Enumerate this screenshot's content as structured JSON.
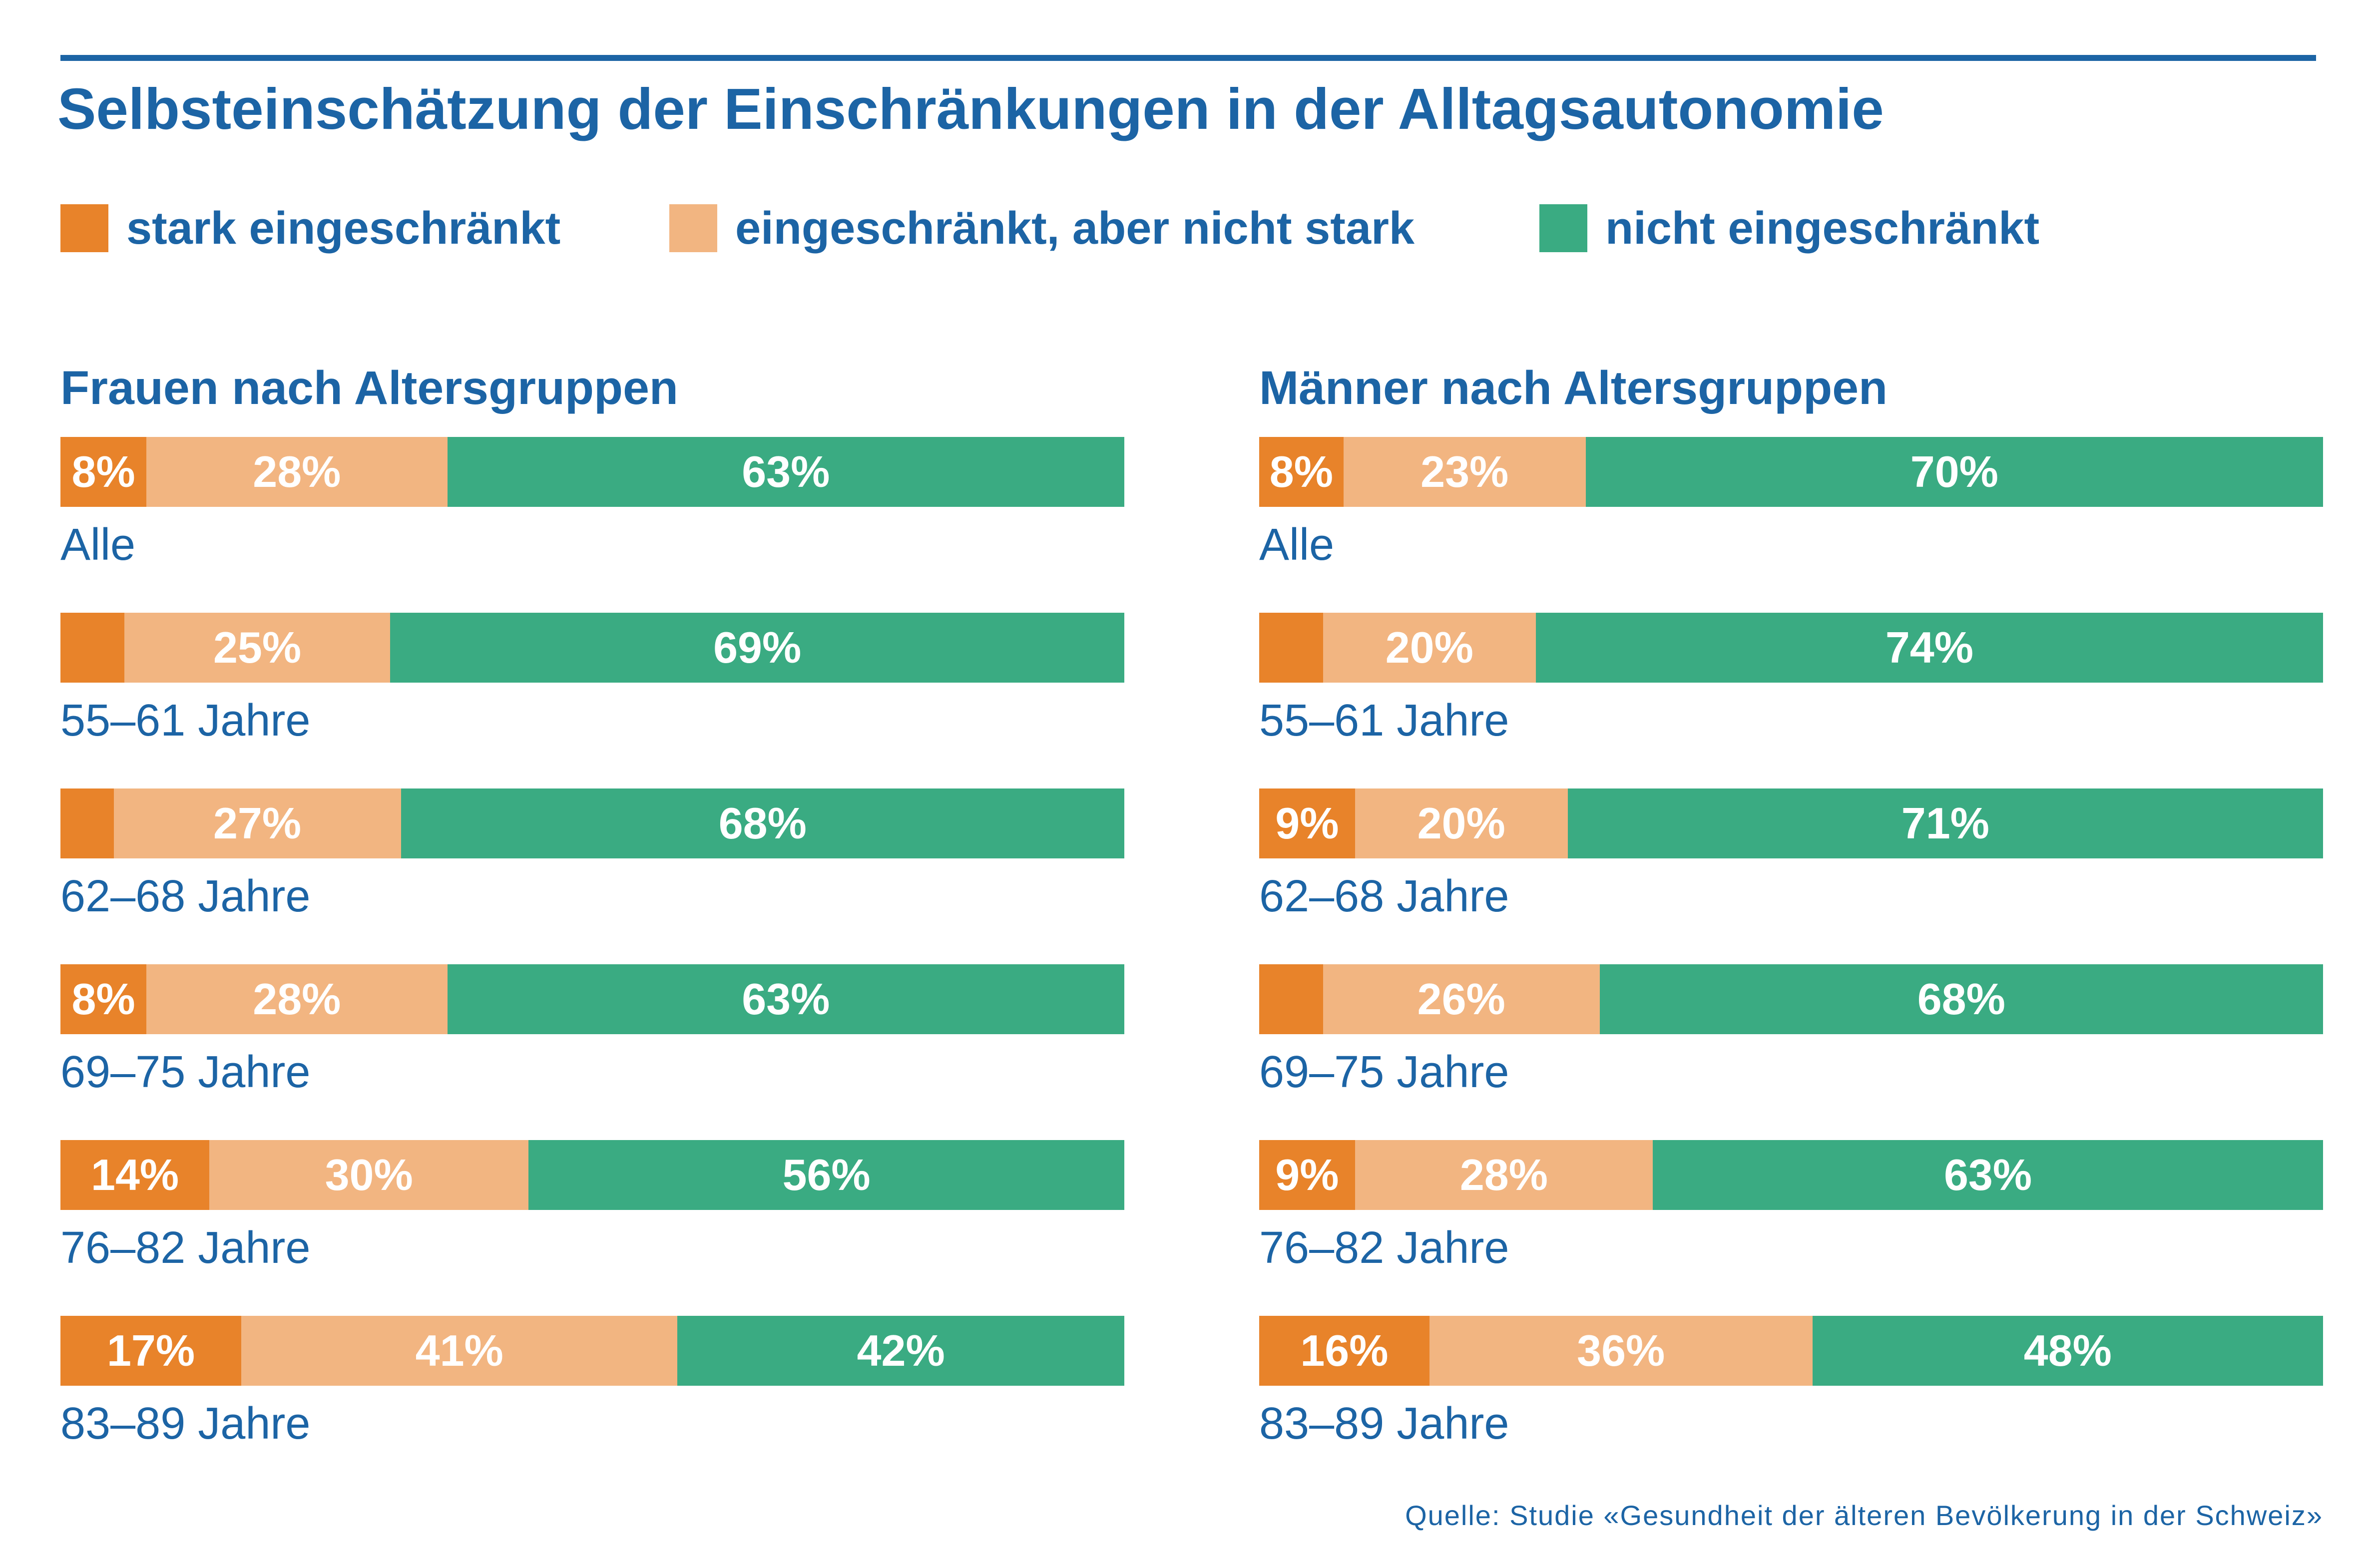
{
  "title": "Selbsteinschätzung der Einschränkungen in der Alltagsautonomie",
  "source": "Quelle: Studie «Gesundheit der älteren Bevölkerung in der Schweiz»",
  "colors": {
    "text": "#1c64a5",
    "rule": "#1c64a5",
    "stark": "#e8832a",
    "eingeschraenkt": "#f2b581",
    "nicht": "#3aab82"
  },
  "legend": [
    {
      "label": "stark eingeschränkt",
      "color": "#e8832a"
    },
    {
      "label": "eingeschränkt, aber nicht stark",
      "color": "#f2b581"
    },
    {
      "label": "nicht eingeschränkt",
      "color": "#3aab82"
    }
  ],
  "chart_data": [
    {
      "type": "bar",
      "orientation": "horizontal",
      "stacked": true,
      "title": "Frauen nach Altersgruppen",
      "categories": [
        "Alle",
        "55–61 Jahre",
        "62–68 Jahre",
        "69–75 Jahre",
        "76–82 Jahre",
        "83–89 Jahre"
      ],
      "series": [
        {
          "name": "stark eingeschränkt",
          "values": [
            8,
            6,
            5,
            8,
            14,
            17
          ],
          "labels": [
            "8%",
            "",
            "",
            "8%",
            "14%",
            "17%"
          ]
        },
        {
          "name": "eingeschränkt, aber nicht stark",
          "values": [
            28,
            25,
            27,
            28,
            30,
            41
          ],
          "labels": [
            "28%",
            "25%",
            "27%",
            "28%",
            "30%",
            "41%"
          ]
        },
        {
          "name": "nicht eingeschränkt",
          "values": [
            63,
            69,
            68,
            63,
            56,
            42
          ],
          "labels": [
            "63%",
            "69%",
            "68%",
            "63%",
            "56%",
            "42%"
          ]
        }
      ],
      "xlim": [
        0,
        100
      ]
    },
    {
      "type": "bar",
      "orientation": "horizontal",
      "stacked": true,
      "title": "Männer nach Altersgruppen",
      "categories": [
        "Alle",
        "55–61 Jahre",
        "62–68 Jahre",
        "69–75 Jahre",
        "76–82 Jahre",
        "83–89 Jahre"
      ],
      "series": [
        {
          "name": "stark eingeschränkt",
          "values": [
            8,
            6,
            9,
            6,
            9,
            16
          ],
          "labels": [
            "8%",
            "",
            "9%",
            "",
            "9%",
            "16%"
          ]
        },
        {
          "name": "eingeschränkt, aber nicht stark",
          "values": [
            23,
            20,
            20,
            26,
            28,
            36
          ],
          "labels": [
            "23%",
            "20%",
            "20%",
            "26%",
            "28%",
            "36%"
          ]
        },
        {
          "name": "nicht eingeschränkt",
          "values": [
            70,
            74,
            71,
            68,
            63,
            48
          ],
          "labels": [
            "70%",
            "74%",
            "71%",
            "68%",
            "63%",
            "48%"
          ]
        }
      ],
      "xlim": [
        0,
        100
      ]
    }
  ]
}
